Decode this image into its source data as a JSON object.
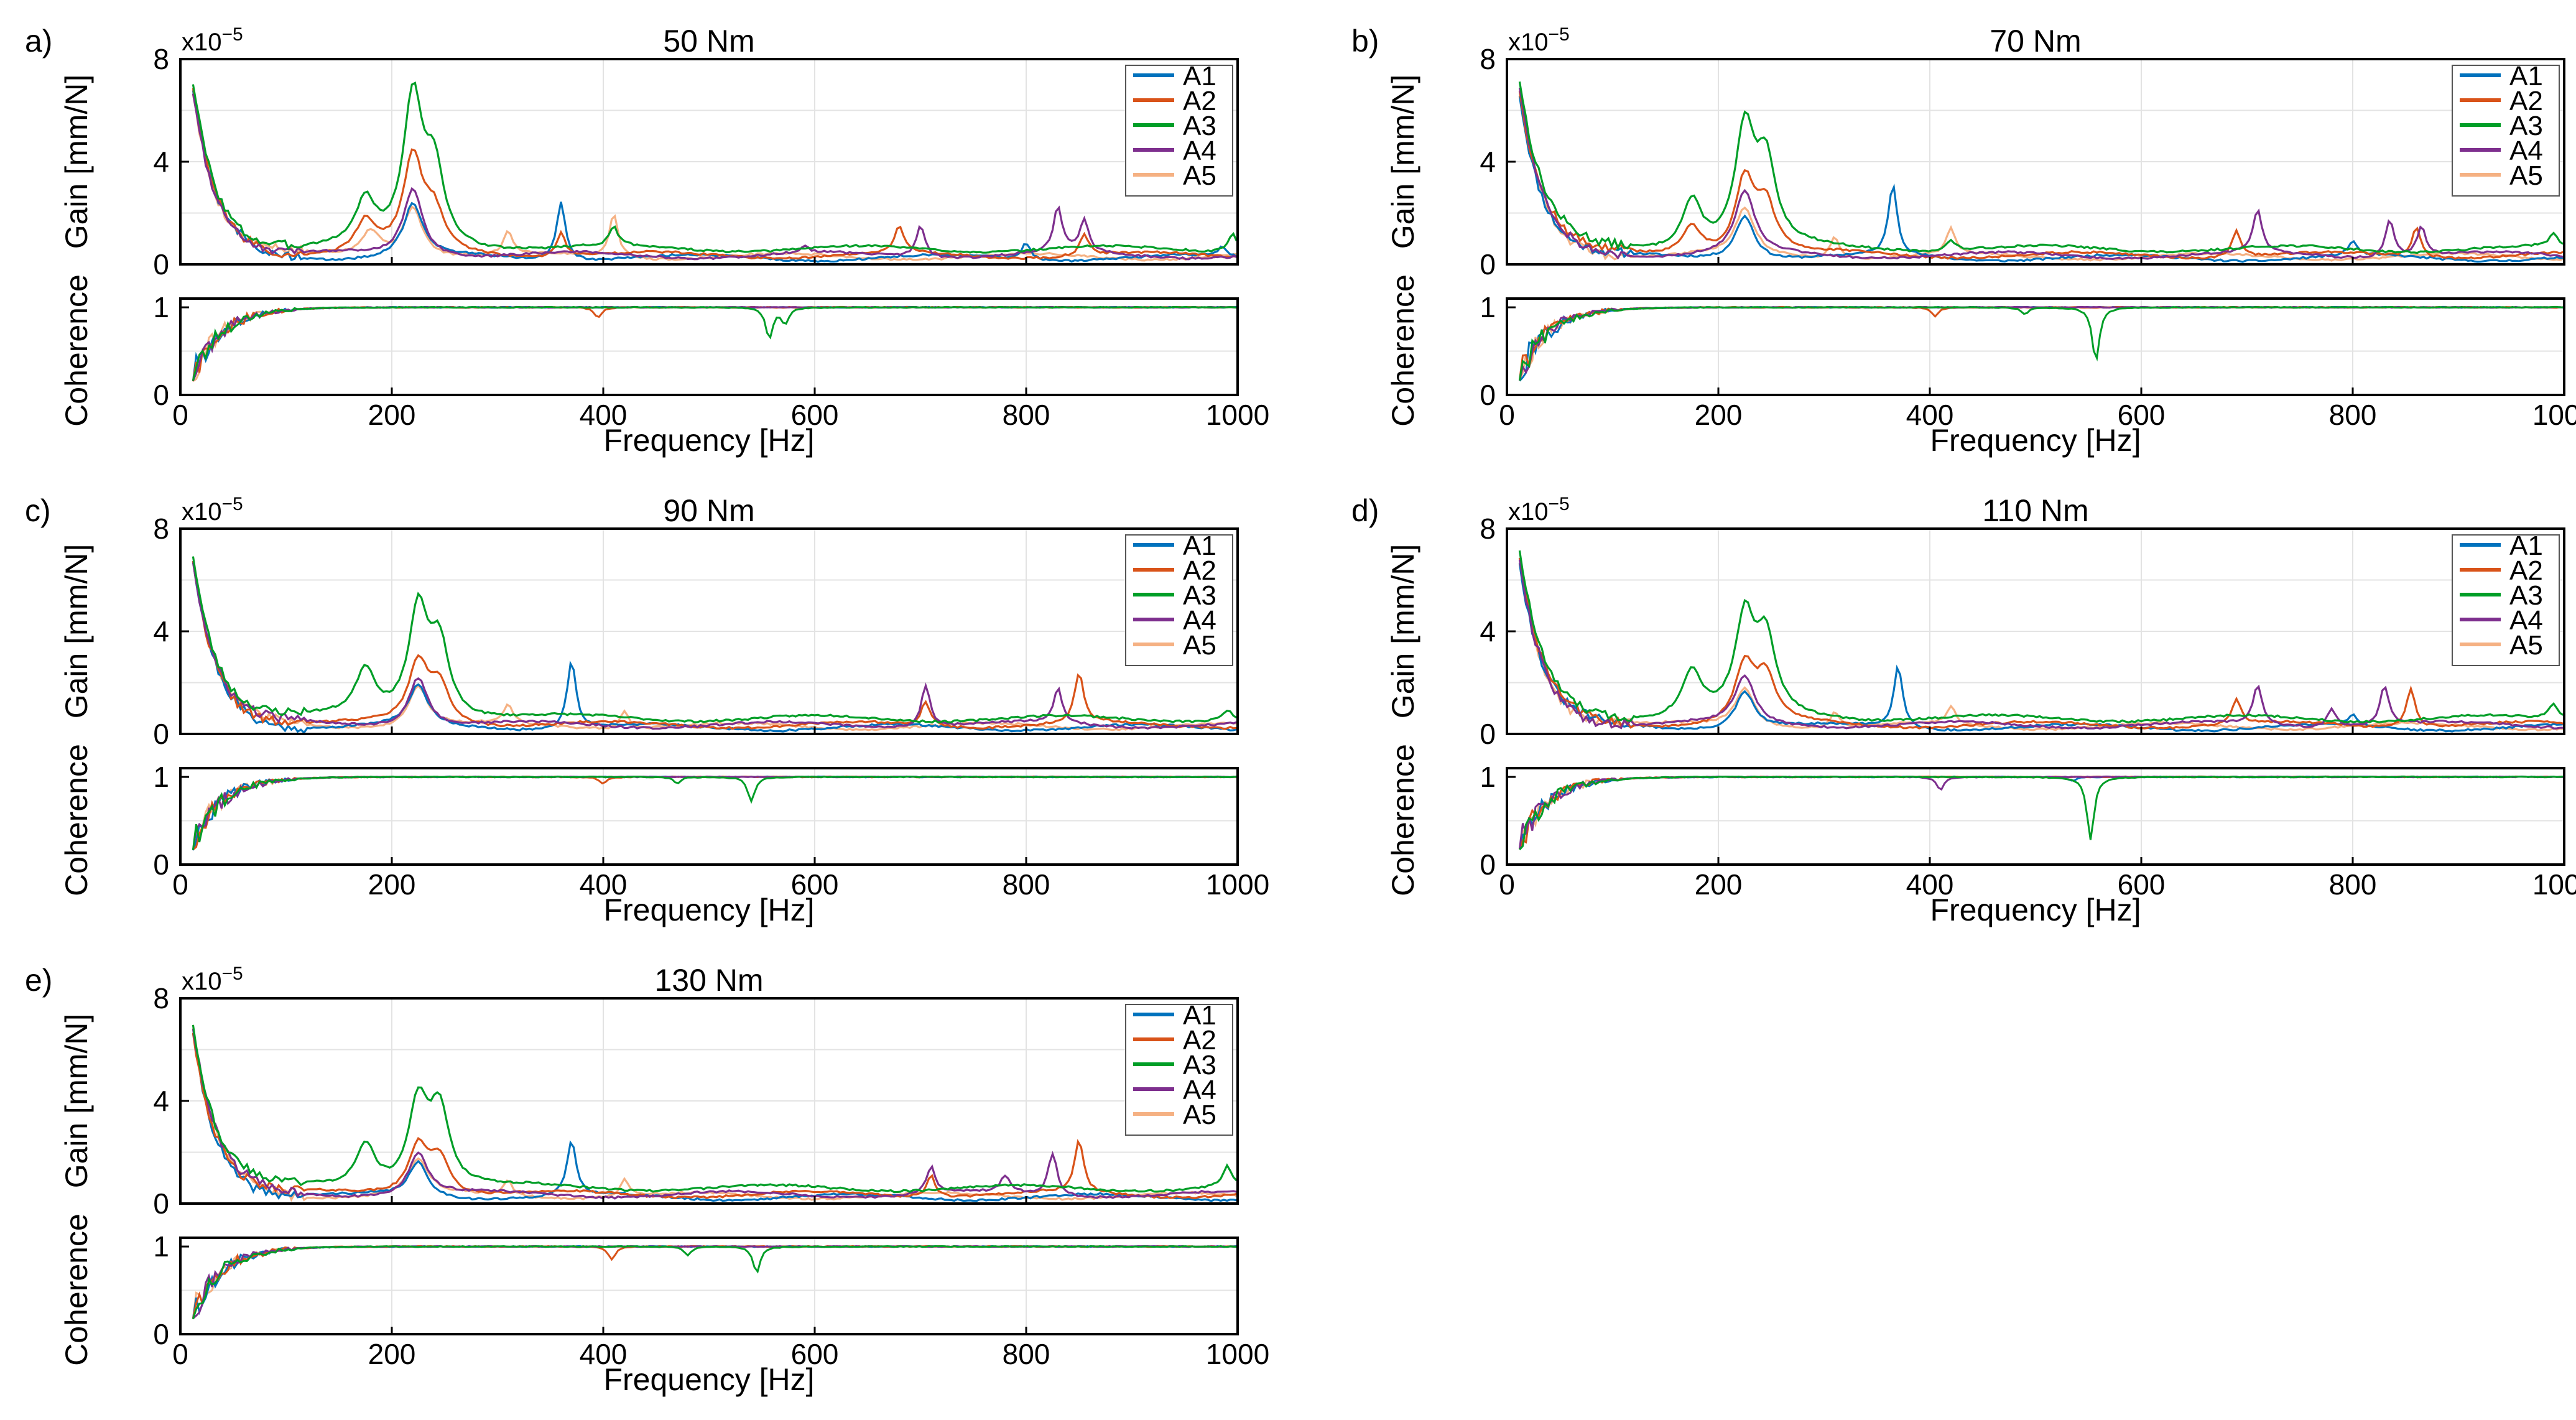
{
  "figure": {
    "common": {
      "gain_ylabel": "Gain [mm/N]",
      "coh_ylabel": "Coherence",
      "xlabel": "Frequency [Hz]",
      "exponent_base": "x10",
      "exponent_power": "−5",
      "gain_yticks": [
        "0",
        "4",
        "8"
      ],
      "coh_yticks": [
        "0",
        "1"
      ],
      "xticks": [
        "0",
        "200",
        "400",
        "600",
        "800",
        "1000"
      ],
      "xlim": [
        0,
        1000
      ],
      "gain_ylim": [
        0,
        8
      ],
      "coh_ylim": [
        0,
        1.1
      ],
      "legend": [
        {
          "name": "A1",
          "color": "#0072BD"
        },
        {
          "name": "A2",
          "color": "#D95319"
        },
        {
          "name": "A3",
          "color": "#009E27"
        },
        {
          "name": "A4",
          "color": "#7E2F8E"
        },
        {
          "name": "A5",
          "color": "#F5B183"
        }
      ]
    }
  },
  "chart_data": [
    {
      "panel_label": "a)",
      "title": "50 Nm",
      "type": "line",
      "units_note": "Gain values in x10^-5 mm/N",
      "series": [
        {
          "name": "A1",
          "peaks": [
            [
              360,
              2.5
            ],
            [
              220,
              2.3
            ],
            [
              800,
              0.9
            ],
            [
              985,
              0.6
            ]
          ],
          "base": 0.25
        },
        {
          "name": "A2",
          "peaks": [
            [
              220,
              4.0
            ],
            [
              175,
              1.6
            ],
            [
              240,
              1.8
            ],
            [
              360,
              1.3
            ],
            [
              680,
              1.4
            ],
            [
              855,
              1.2
            ]
          ],
          "base": 0.35
        },
        {
          "name": "A3",
          "peaks": [
            [
              220,
              6.3
            ],
            [
              240,
              3.5
            ],
            [
              175,
              2.3
            ],
            [
              410,
              1.3
            ],
            [
              995,
              1.3
            ]
          ],
          "base": 0.6
        },
        {
          "name": "A4",
          "peaks": [
            [
              220,
              3.0
            ],
            [
              700,
              1.6
            ],
            [
              830,
              2.1
            ],
            [
              855,
              1.6
            ],
            [
              590,
              0.6
            ]
          ],
          "base": 0.35
        },
        {
          "name": "A5",
          "peaks": [
            [
              220,
              2.3
            ],
            [
              410,
              2.0
            ],
            [
              310,
              1.2
            ],
            [
              180,
              1.3
            ]
          ],
          "base": 0.3
        }
      ],
      "coherence_dips": [
        {
          "name": "A2",
          "f": 395,
          "depth": 0.12
        },
        {
          "name": "A3",
          "f": 557,
          "depth": 0.35
        },
        {
          "name": "A3",
          "f": 572,
          "depth": 0.18
        }
      ]
    },
    {
      "panel_label": "b)",
      "title": "70 Nm",
      "type": "line",
      "units_note": "Gain values in x10^-5 mm/N",
      "series": [
        {
          "name": "A1",
          "peaks": [
            [
              365,
              3.0
            ],
            [
              225,
              2.0
            ],
            [
              800,
              0.8
            ]
          ],
          "base": 0.25
        },
        {
          "name": "A2",
          "peaks": [
            [
              225,
              3.3
            ],
            [
              245,
              2.2
            ],
            [
              175,
              1.5
            ],
            [
              690,
              1.4
            ],
            [
              860,
              1.5
            ]
          ],
          "base": 0.35
        },
        {
          "name": "A3",
          "peaks": [
            [
              225,
              5.1
            ],
            [
              245,
              3.7
            ],
            [
              175,
              2.5
            ],
            [
              420,
              1.0
            ],
            [
              990,
              1.1
            ]
          ],
          "base": 0.6
        },
        {
          "name": "A4",
          "peaks": [
            [
              225,
              2.8
            ],
            [
              710,
              2.0
            ],
            [
              835,
              1.8
            ],
            [
              865,
              1.5
            ]
          ],
          "base": 0.35
        },
        {
          "name": "A5",
          "peaks": [
            [
              225,
              2.1
            ],
            [
              420,
              1.3
            ],
            [
              310,
              1.2
            ]
          ],
          "base": 0.3
        }
      ],
      "coherence_dips": [
        {
          "name": "A2",
          "f": 405,
          "depth": 0.1
        },
        {
          "name": "A3",
          "f": 557,
          "depth": 0.62
        },
        {
          "name": "A3",
          "f": 490,
          "depth": 0.08
        }
      ]
    },
    {
      "panel_label": "c)",
      "title": "90 Nm",
      "type": "line",
      "units_note": "Gain values in x10^-5 mm/N",
      "series": [
        {
          "name": "A1",
          "peaks": [
            [
              370,
              2.9
            ],
            [
              225,
              1.8
            ]
          ],
          "base": 0.25
        },
        {
          "name": "A2",
          "peaks": [
            [
              225,
              2.7
            ],
            [
              245,
              1.9
            ],
            [
              850,
              2.3
            ],
            [
              705,
              1.3
            ]
          ],
          "base": 0.35
        },
        {
          "name": "A3",
          "peaks": [
            [
              225,
              4.8
            ],
            [
              245,
              3.4
            ],
            [
              175,
              2.4
            ],
            [
              990,
              1.0
            ]
          ],
          "base": 0.6
        },
        {
          "name": "A4",
          "peaks": [
            [
              225,
              2.3
            ],
            [
              705,
              2.0
            ],
            [
              830,
              1.7
            ]
          ],
          "base": 0.35
        },
        {
          "name": "A5",
          "peaks": [
            [
              225,
              1.9
            ],
            [
              420,
              1.0
            ],
            [
              310,
              1.0
            ]
          ],
          "base": 0.3
        }
      ],
      "coherence_dips": [
        {
          "name": "A2",
          "f": 400,
          "depth": 0.08
        },
        {
          "name": "A3",
          "f": 540,
          "depth": 0.28
        },
        {
          "name": "A3",
          "f": 470,
          "depth": 0.07
        }
      ]
    },
    {
      "panel_label": "d)",
      "title": "110 Nm",
      "type": "line",
      "units_note": "Gain values in x10^-5 mm/N",
      "series": [
        {
          "name": "A1",
          "peaks": [
            [
              370,
              2.7
            ],
            [
              225,
              1.7
            ],
            [
              800,
              0.7
            ]
          ],
          "base": 0.25
        },
        {
          "name": "A2",
          "peaks": [
            [
              225,
              2.6
            ],
            [
              245,
              2.1
            ],
            [
              855,
              1.9
            ],
            [
              690,
              1.3
            ]
          ],
          "base": 0.35
        },
        {
          "name": "A3",
          "peaks": [
            [
              225,
              4.3
            ],
            [
              245,
              3.5
            ],
            [
              175,
              2.4
            ],
            [
              990,
              1.2
            ]
          ],
          "base": 0.6
        },
        {
          "name": "A4",
          "peaks": [
            [
              225,
              2.2
            ],
            [
              710,
              1.9
            ],
            [
              830,
              1.9
            ],
            [
              780,
              1.1
            ]
          ],
          "base": 0.35
        },
        {
          "name": "A5",
          "peaks": [
            [
              225,
              1.8
            ],
            [
              420,
              1.0
            ],
            [
              310,
              0.9
            ]
          ],
          "base": 0.3
        }
      ],
      "coherence_dips": [
        {
          "name": "A4",
          "f": 410,
          "depth": 0.15
        },
        {
          "name": "A3",
          "f": 552,
          "depth": 0.72
        },
        {
          "name": "A1",
          "f": 535,
          "depth": 0.05
        }
      ]
    },
    {
      "panel_label": "e)",
      "title": "130 Nm",
      "type": "line",
      "units_note": "Gain values in x10^-5 mm/N",
      "series": [
        {
          "name": "A1",
          "peaks": [
            [
              370,
              2.4
            ],
            [
              225,
              1.6
            ]
          ],
          "base": 0.25
        },
        {
          "name": "A2",
          "peaks": [
            [
              225,
              2.3
            ],
            [
              245,
              1.8
            ],
            [
              850,
              2.4
            ],
            [
              710,
              1.2
            ]
          ],
          "base": 0.35
        },
        {
          "name": "A3",
          "peaks": [
            [
              225,
              3.9
            ],
            [
              245,
              3.6
            ],
            [
              175,
              2.3
            ],
            [
              990,
              1.4
            ]
          ],
          "base": 0.6
        },
        {
          "name": "A4",
          "peaks": [
            [
              225,
              2.0
            ],
            [
              710,
              1.4
            ],
            [
              825,
              2.0
            ],
            [
              780,
              1.0
            ]
          ],
          "base": 0.35
        },
        {
          "name": "A5",
          "peaks": [
            [
              225,
              1.7
            ],
            [
              420,
              1.0
            ],
            [
              310,
              0.9
            ]
          ],
          "base": 0.3
        }
      ],
      "coherence_dips": [
        {
          "name": "A2",
          "f": 408,
          "depth": 0.15
        },
        {
          "name": "A3",
          "f": 545,
          "depth": 0.3
        },
        {
          "name": "A3",
          "f": 480,
          "depth": 0.1
        }
      ]
    }
  ]
}
